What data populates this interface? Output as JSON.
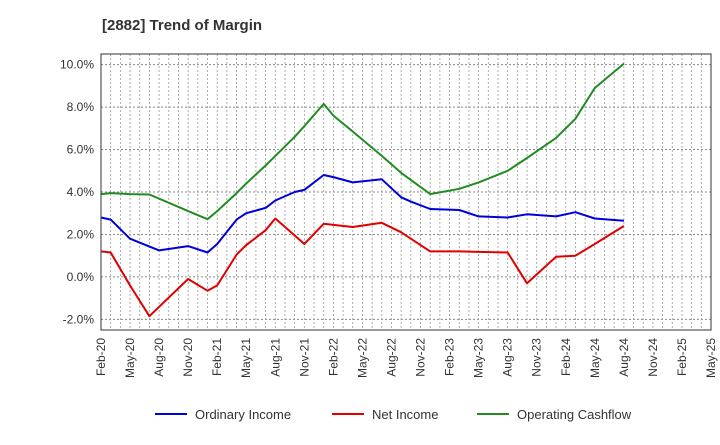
{
  "chart_data": {
    "type": "line",
    "title": "[2882]  Trend of Margin",
    "x_tick_labels": [
      "Feb-20",
      "May-20",
      "Aug-20",
      "Nov-20",
      "Feb-21",
      "May-21",
      "Aug-21",
      "Nov-21",
      "Feb-22",
      "May-22",
      "Aug-22",
      "Nov-22",
      "Feb-23",
      "May-23",
      "Aug-23",
      "Nov-23",
      "Feb-24",
      "May-24",
      "Aug-24",
      "Nov-24",
      "Feb-25",
      "May-25"
    ],
    "y_tick_labels": [
      "-2.0%",
      "0.0%",
      "2.0%",
      "4.0%",
      "6.0%",
      "8.0%",
      "10.0%"
    ],
    "y_ticks": [
      -2,
      0,
      2,
      4,
      6,
      8,
      10
    ],
    "ylim": [
      -2.5,
      10.5
    ],
    "xlim": [
      0,
      63
    ],
    "grid": true,
    "legend_position": "bottom",
    "colors": {
      "Ordinary Income": "#0000dd",
      "Net Income": "#e00000",
      "Operating Cashflow": "#228b22"
    },
    "x": [
      0,
      1,
      2,
      3,
      4,
      5,
      6,
      7,
      8,
      9,
      10,
      11,
      12,
      13,
      14,
      15,
      16,
      17,
      18,
      19,
      20,
      21,
      22,
      23,
      24,
      25,
      26,
      27,
      28,
      29,
      30,
      31,
      32,
      33,
      34,
      35,
      36,
      37,
      38,
      39,
      40,
      41,
      42,
      43,
      44,
      45,
      46,
      47,
      48,
      49,
      50,
      51,
      52,
      53,
      54,
      55,
      56,
      57,
      58,
      59,
      60
    ],
    "series": [
      {
        "name": "Ordinary Income",
        "values": [
          2.8,
          2.7,
          null,
          1.8,
          null,
          null,
          1.25,
          null,
          null,
          1.45,
          null,
          1.15,
          1.55,
          null,
          2.7,
          3.0,
          null,
          3.25,
          3.6,
          null,
          4.0,
          4.1,
          null,
          4.8,
          4.7,
          null,
          4.45,
          null,
          null,
          4.6,
          null,
          3.75,
          3.55,
          null,
          3.2,
          null,
          null,
          3.15,
          null,
          2.85,
          null,
          null,
          2.8,
          null,
          2.95,
          null,
          null,
          2.85,
          null,
          3.05,
          null,
          2.75,
          null,
          null,
          2.65,
          null,
          null,
          null,
          null,
          null,
          null
        ]
      },
      {
        "name": "Net Income",
        "values": [
          1.2,
          1.15,
          null,
          -0.4,
          null,
          -1.85,
          null,
          null,
          null,
          -0.1,
          null,
          -0.65,
          -0.4,
          null,
          1.05,
          1.5,
          null,
          2.2,
          2.75,
          null,
          1.95,
          1.55,
          null,
          2.5,
          2.45,
          null,
          2.35,
          null,
          null,
          2.55,
          null,
          2.1,
          null,
          null,
          1.2,
          null,
          null,
          1.2,
          null,
          1.18,
          null,
          null,
          1.15,
          null,
          -0.3,
          null,
          null,
          0.95,
          null,
          1.0,
          null,
          1.55,
          null,
          null,
          2.4,
          null,
          null,
          null,
          null,
          null,
          null
        ]
      },
      {
        "name": "Operating Cashflow",
        "values": [
          3.9,
          3.95,
          null,
          3.9,
          null,
          3.88,
          null,
          null,
          null,
          3.1,
          null,
          2.72,
          3.1,
          null,
          3.95,
          4.4,
          null,
          5.25,
          5.7,
          null,
          6.6,
          7.1,
          null,
          8.15,
          7.6,
          null,
          6.85,
          null,
          null,
          5.7,
          null,
          4.9,
          null,
          null,
          3.9,
          null,
          null,
          4.15,
          null,
          4.45,
          null,
          null,
          5.0,
          null,
          5.6,
          null,
          null,
          6.55,
          null,
          7.45,
          null,
          8.9,
          null,
          null,
          10.05,
          null,
          null,
          null,
          null,
          null,
          null
        ]
      }
    ]
  }
}
